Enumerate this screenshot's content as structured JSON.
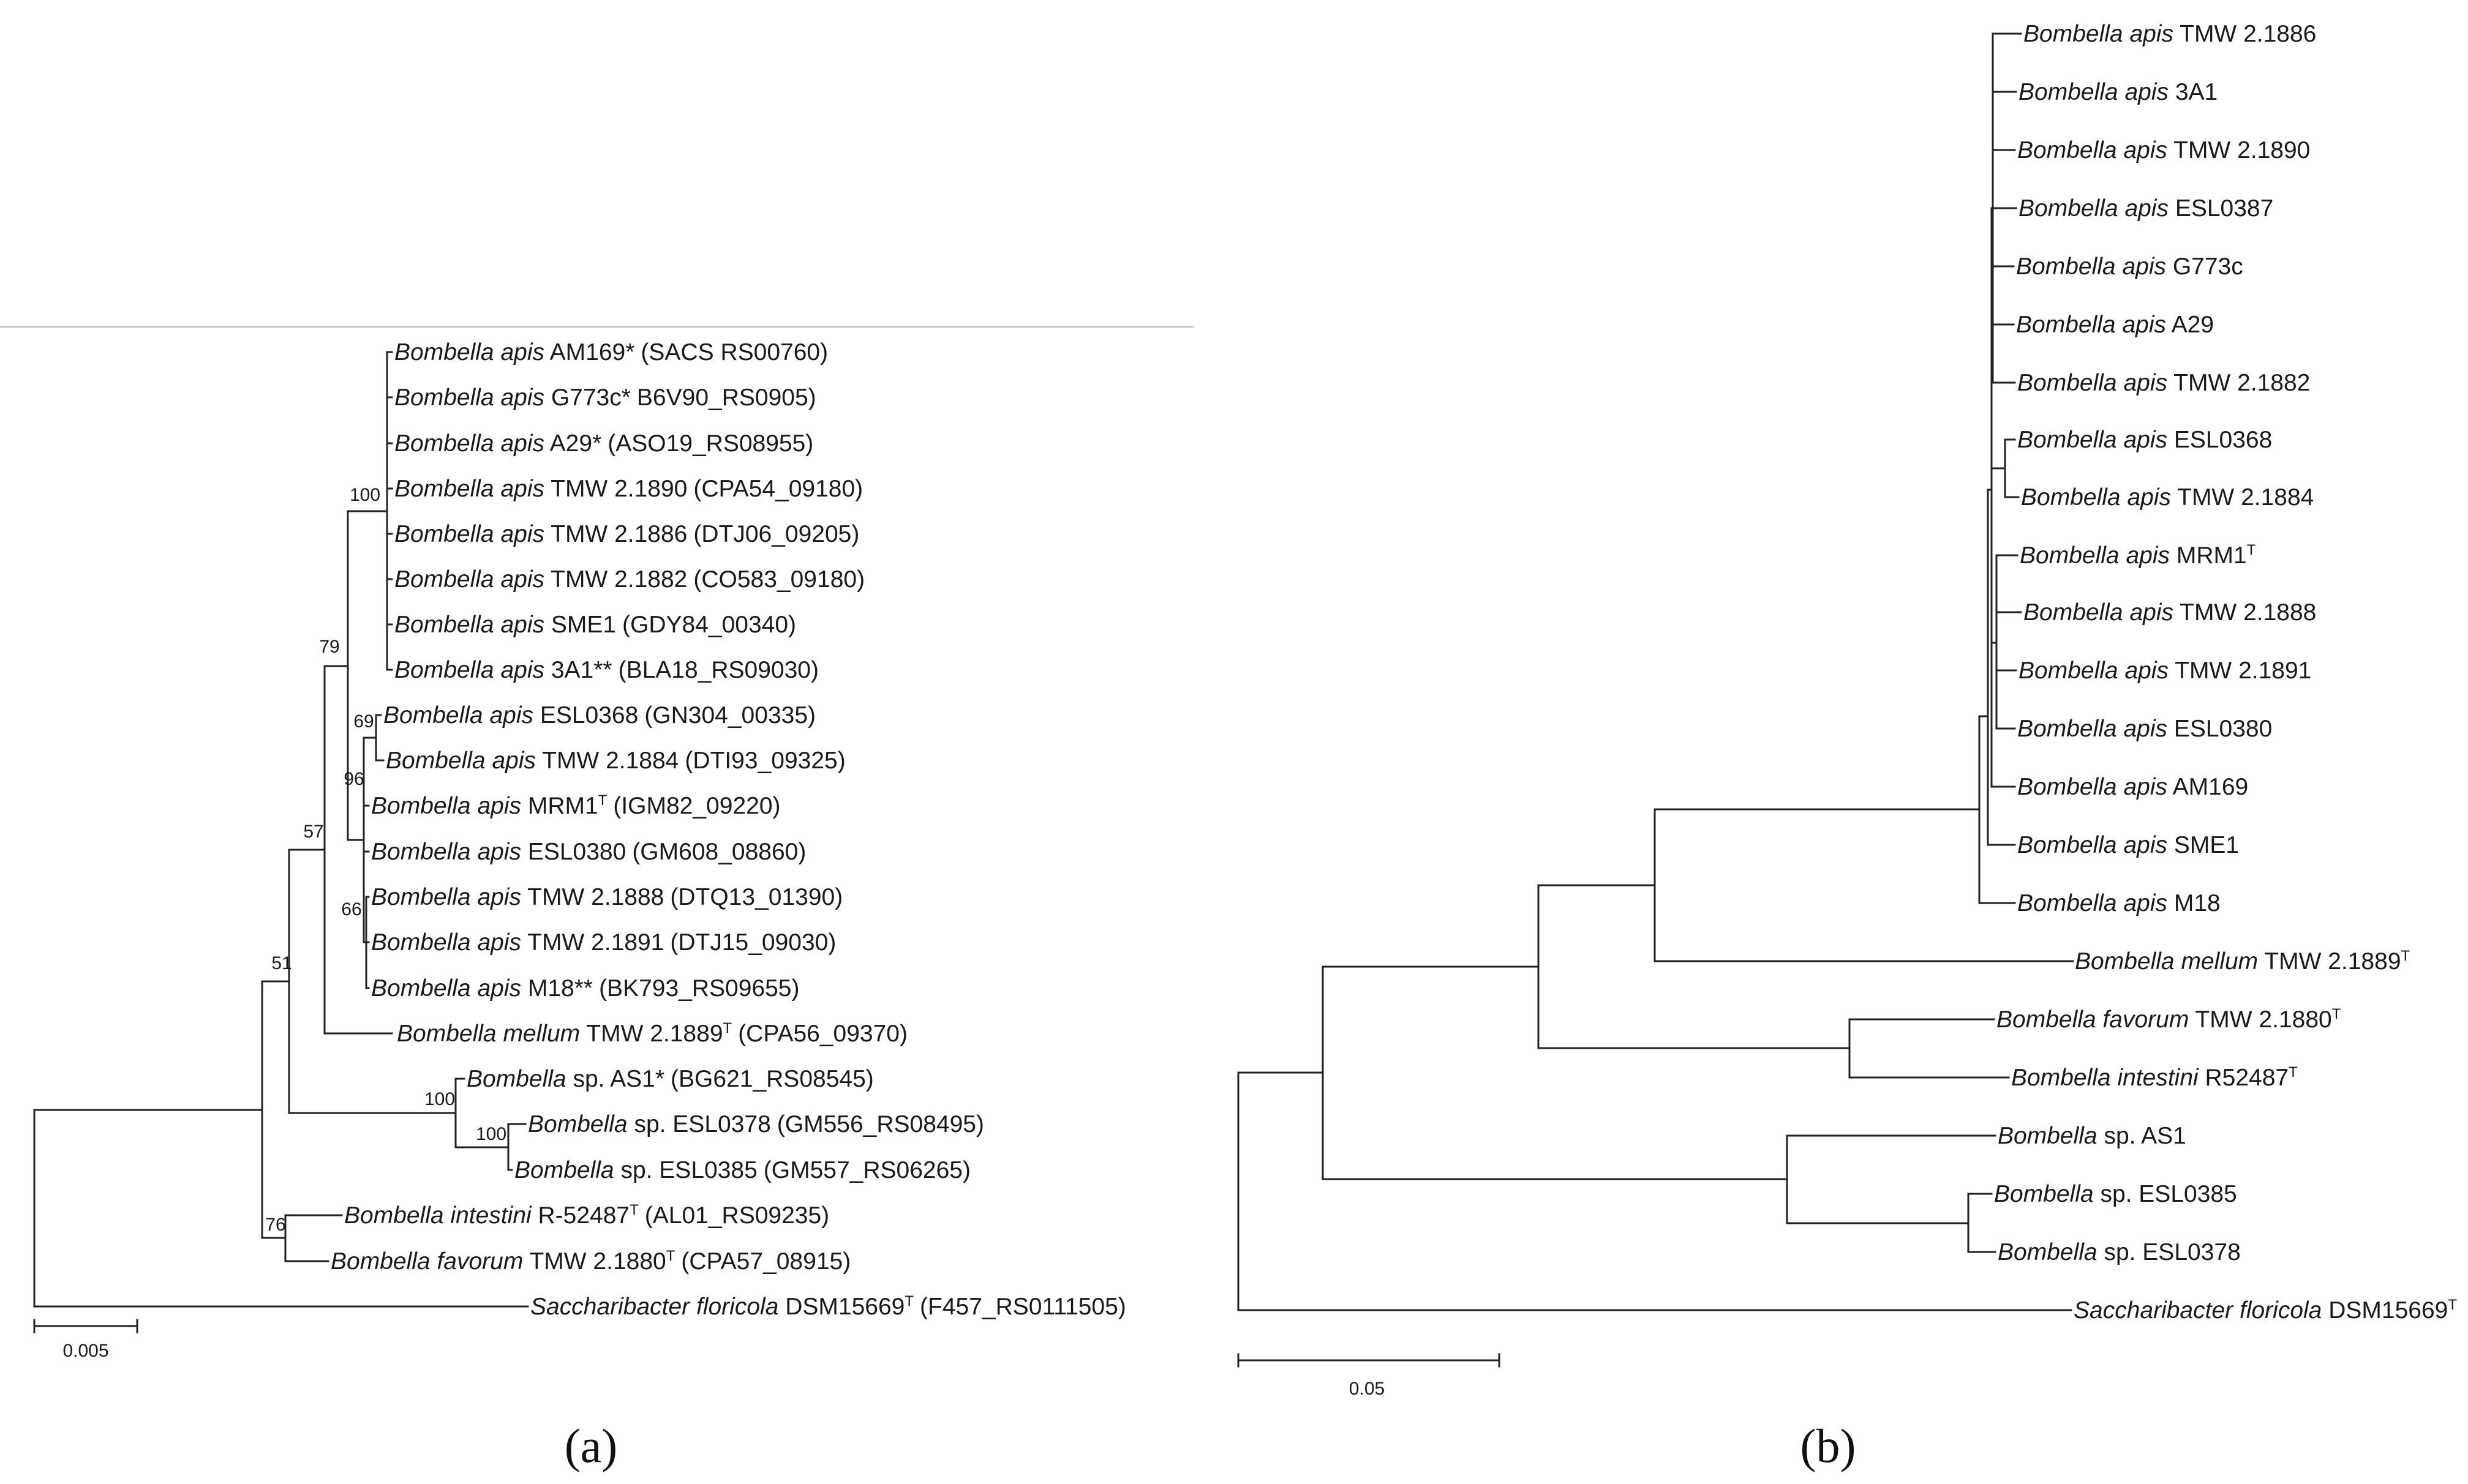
{
  "panel_a": {
    "caption": "(a)",
    "scale_label": "0.005",
    "taxa": [
      {
        "genus": "Bombella",
        "species": "apis",
        "strain": "AM169*",
        "sup": "",
        "locus": "(SACS RS00760)"
      },
      {
        "genus": "Bombella",
        "species": "apis",
        "strain": "G773c*",
        "sup": "",
        "locus": "B6V90_RS0905)"
      },
      {
        "genus": "Bombella",
        "species": "apis",
        "strain": "A29*",
        "sup": "",
        "locus": "(ASO19_RS08955)"
      },
      {
        "genus": "Bombella",
        "species": "apis",
        "strain": "TMW 2.1890",
        "sup": "",
        "locus": "(CPA54_09180)"
      },
      {
        "genus": "Bombella",
        "species": "apis",
        "strain": "TMW 2.1886",
        "sup": "",
        "locus": "(DTJ06_09205)"
      },
      {
        "genus": "Bombella",
        "species": "apis",
        "strain": "TMW 2.1882",
        "sup": "",
        "locus": "(CO583_09180)"
      },
      {
        "genus": "Bombella",
        "species": "apis",
        "strain": "SME1",
        "sup": "",
        "locus": "(GDY84_00340)"
      },
      {
        "genus": "Bombella",
        "species": "apis",
        "strain": "3A1**",
        "sup": "",
        "locus": "(BLA18_RS09030)"
      },
      {
        "genus": "Bombella",
        "species": "apis",
        "strain": "ESL0368",
        "sup": "",
        "locus": "(GN304_00335)"
      },
      {
        "genus": "Bombella",
        "species": "apis",
        "strain": "TMW 2.1884",
        "sup": "",
        "locus": "(DTI93_09325)"
      },
      {
        "genus": "Bombella",
        "species": "apis",
        "strain": "MRM1",
        "sup": "T",
        "locus": "(IGM82_09220)"
      },
      {
        "genus": "Bombella",
        "species": "apis",
        "strain": "ESL0380",
        "sup": "",
        "locus": "(GM608_08860)"
      },
      {
        "genus": "Bombella",
        "species": "apis",
        "strain": "TMW 2.1888",
        "sup": "",
        "locus": "(DTQ13_01390)"
      },
      {
        "genus": "Bombella",
        "species": "apis",
        "strain": "TMW 2.1891",
        "sup": "",
        "locus": "(DTJ15_09030)"
      },
      {
        "genus": "Bombella",
        "species": "apis",
        "strain": "M18**",
        "sup": "",
        "locus": "(BK793_RS09655)"
      },
      {
        "genus": "Bombella",
        "species": "mellum",
        "strain": "TMW 2.1889",
        "sup": "T",
        "locus": "(CPA56_09370)"
      },
      {
        "genus": "Bombella",
        "species": "",
        "strain": "sp. AS1*",
        "sup": "",
        "locus": "(BG621_RS08545)"
      },
      {
        "genus": "Bombella",
        "species": "",
        "strain": "sp. ESL0378",
        "sup": "",
        "locus": "(GM556_RS08495)"
      },
      {
        "genus": "Bombella",
        "species": "",
        "strain": "sp. ESL0385",
        "sup": "",
        "locus": "(GM557_RS06265)"
      },
      {
        "genus": "Bombella",
        "species": "intestini",
        "strain": "R-52487",
        "sup": "T",
        "locus": "(AL01_RS09235)"
      },
      {
        "genus": "Bombella",
        "species": "favorum",
        "strain": "TMW 2.1880",
        "sup": "T",
        "locus": "(CPA57_08915)"
      },
      {
        "genus": "Saccharibacter",
        "species": "floricola",
        "strain": "DSM15669",
        "sup": "T",
        "locus": "(F457_RS0111505)"
      }
    ],
    "bootstrap": [
      "100",
      "79",
      "69",
      "96",
      "66",
      "57",
      "51",
      "100",
      "100",
      "76"
    ]
  },
  "panel_b": {
    "caption": "(b)",
    "scale_label": "0.05",
    "taxa": [
      {
        "genus": "Bombella",
        "species": "apis",
        "strain": "TMW 2.1886",
        "sup": ""
      },
      {
        "genus": "Bombella",
        "species": "apis",
        "strain": "3A1",
        "sup": ""
      },
      {
        "genus": "Bombella",
        "species": "apis",
        "strain": "TMW 2.1890",
        "sup": ""
      },
      {
        "genus": "Bombella",
        "species": "apis",
        "strain": "ESL0387",
        "sup": ""
      },
      {
        "genus": "Bombella",
        "species": "apis",
        "strain": "G773c",
        "sup": ""
      },
      {
        "genus": "Bombella",
        "species": "apis",
        "strain": "A29",
        "sup": ""
      },
      {
        "genus": "Bombella",
        "species": "apis",
        "strain": "TMW 2.1882",
        "sup": ""
      },
      {
        "genus": "Bombella",
        "species": "apis",
        "strain": "ESL0368",
        "sup": ""
      },
      {
        "genus": "Bombella",
        "species": "apis",
        "strain": "TMW 2.1884",
        "sup": ""
      },
      {
        "genus": "Bombella",
        "species": "apis",
        "strain": "MRM1",
        "sup": "T"
      },
      {
        "genus": "Bombella",
        "species": "apis",
        "strain": "TMW 2.1888",
        "sup": ""
      },
      {
        "genus": "Bombella",
        "species": "apis",
        "strain": "TMW 2.1891",
        "sup": ""
      },
      {
        "genus": "Bombella",
        "species": "apis",
        "strain": "ESL0380",
        "sup": ""
      },
      {
        "genus": "Bombella",
        "species": "apis",
        "strain": "AM169",
        "sup": ""
      },
      {
        "genus": "Bombella",
        "species": "apis",
        "strain": "SME1",
        "sup": ""
      },
      {
        "genus": "Bombella",
        "species": "apis",
        "strain": "M18",
        "sup": ""
      },
      {
        "genus": "Bombella",
        "species": "mellum",
        "strain": "TMW 2.1889",
        "sup": "T"
      },
      {
        "genus": "Bombella",
        "species": "favorum",
        "strain": "TMW 2.1880",
        "sup": "T"
      },
      {
        "genus": "Bombella",
        "species": "intestini",
        "strain": "R52487",
        "sup": "T"
      },
      {
        "genus": "Bombella",
        "species": "",
        "strain": "sp. AS1",
        "sup": ""
      },
      {
        "genus": "Bombella",
        "species": "",
        "strain": "sp. ESL0385",
        "sup": ""
      },
      {
        "genus": "Bombella",
        "species": "",
        "strain": "sp. ESL0378",
        "sup": ""
      },
      {
        "genus": "Saccharibacter",
        "species": "floricola",
        "strain": "DSM15669",
        "sup": "T"
      }
    ]
  }
}
